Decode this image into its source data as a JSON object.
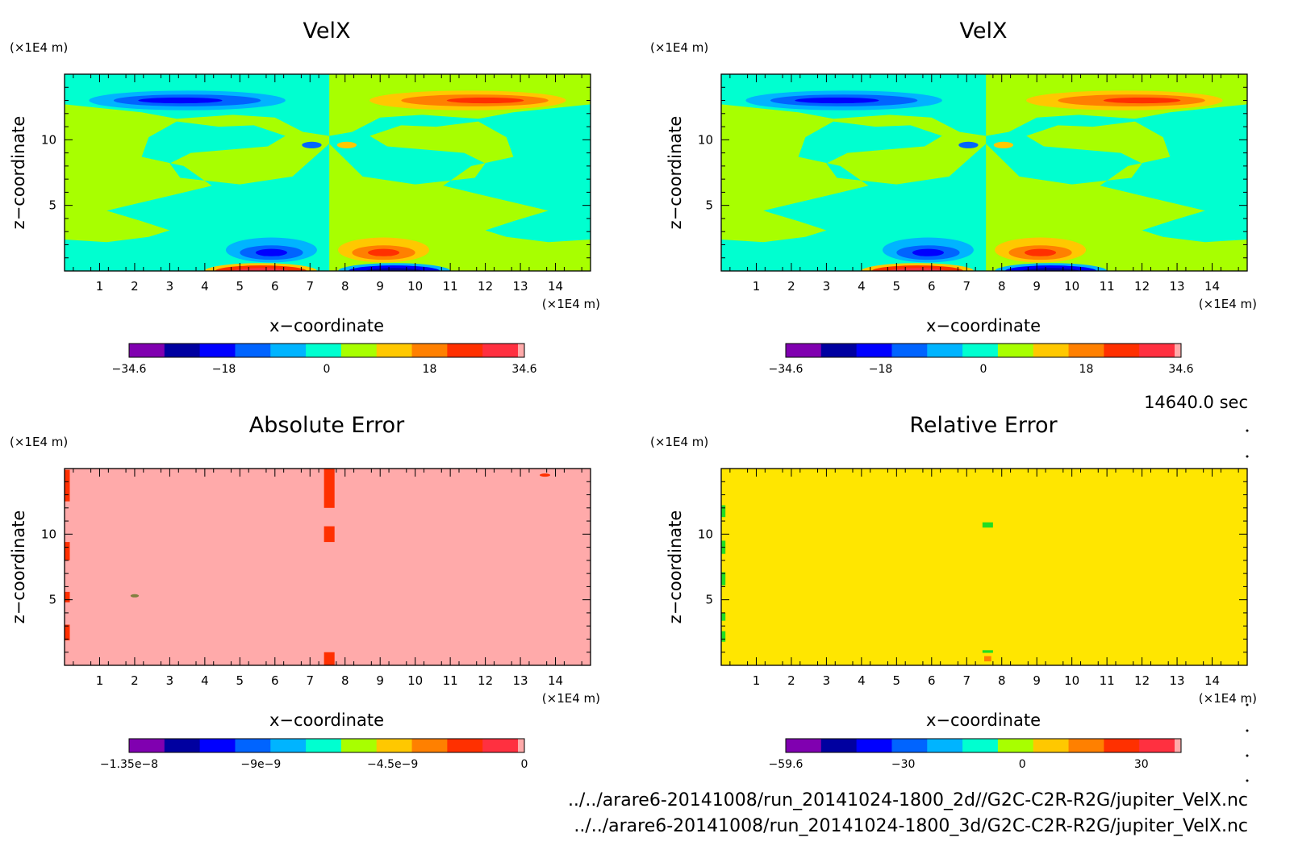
{
  "time_label": "14640.0 sec",
  "footer": {
    "line1": "../../arare6-20141008/run_20141024-1800_2d//G2C-C2R-R2G/jupiter_VelX.nc",
    "line2": "../../arare6-20141008/run_20141024-1800_3d/G2C-C2R-R2G/jupiter_VelX.nc"
  },
  "palette_colors": [
    "#8000b0",
    "#0000a0",
    "#0000ff",
    "#0064ff",
    "#00b4ff",
    "#00ffd0",
    "#a8ff00",
    "#ffc800",
    "#ff8000",
    "#ff3000",
    "#ff3040",
    "#ffaaaa"
  ],
  "chart_data": [
    {
      "type": "heatmap",
      "title": "VelX",
      "xlabel": "x−coordinate",
      "ylabel": "z−coordinate",
      "x_unit": "(×1E4 m)",
      "y_unit": "(×1E4 m)",
      "xlim": [
        0,
        15
      ],
      "ylim": [
        0,
        15
      ],
      "x_ticks": [
        "1",
        "2",
        "3",
        "4",
        "5",
        "6",
        "7",
        "8",
        "9",
        "10",
        "11",
        "12",
        "13",
        "14"
      ],
      "y_ticks": [
        "5",
        "10"
      ],
      "colorbar": {
        "min": -34.6,
        "max": 34.6,
        "tick_labels": [
          "−34.6",
          "−18",
          "0",
          "18",
          "34.6"
        ],
        "tick_values": [
          -34.6,
          -18,
          0,
          18,
          34.6
        ]
      },
      "field": "velx"
    },
    {
      "type": "heatmap",
      "title": "VelX",
      "xlabel": "x−coordinate",
      "ylabel": "z−coordinate",
      "x_unit": "(×1E4 m)",
      "y_unit": "(×1E4 m)",
      "xlim": [
        0,
        15
      ],
      "ylim": [
        0,
        15
      ],
      "x_ticks": [
        "1",
        "2",
        "3",
        "4",
        "5",
        "6",
        "7",
        "8",
        "9",
        "10",
        "11",
        "12",
        "13",
        "14"
      ],
      "y_ticks": [
        "5",
        "10"
      ],
      "colorbar": {
        "min": -34.6,
        "max": 34.6,
        "tick_labels": [
          "−34.6",
          "−18",
          "0",
          "18",
          "34.6"
        ],
        "tick_values": [
          -34.6,
          -18,
          0,
          18,
          34.6
        ]
      },
      "field": "velx"
    },
    {
      "type": "heatmap",
      "title": "Absolute Error",
      "xlabel": "x−coordinate",
      "ylabel": "z−coordinate",
      "x_unit": "(×1E4 m)",
      "y_unit": "(×1E4 m)",
      "xlim": [
        0,
        15
      ],
      "ylim": [
        0,
        15
      ],
      "x_ticks": [
        "1",
        "2",
        "3",
        "4",
        "5",
        "6",
        "7",
        "8",
        "9",
        "10",
        "11",
        "12",
        "13",
        "14"
      ],
      "y_ticks": [
        "5",
        "10"
      ],
      "colorbar": {
        "min": -1.35e-08,
        "max": 0,
        "tick_labels": [
          "−1.35e−8",
          "−9e−9",
          "−4.5e−9",
          "0"
        ],
        "tick_values": [
          -1.35e-08,
          -9e-09,
          -4.5e-09,
          0
        ]
      },
      "field": "abs_error",
      "background_value": 0
    },
    {
      "type": "heatmap",
      "title": "Relative Error",
      "xlabel": "x−coordinate",
      "ylabel": "z−coordinate",
      "x_unit": "(×1E4 m)",
      "y_unit": "(×1E4 m)",
      "xlim": [
        0,
        15
      ],
      "ylim": [
        0,
        15
      ],
      "x_ticks": [
        "1",
        "2",
        "3",
        "4",
        "5",
        "6",
        "7",
        "8",
        "9",
        "10",
        "11",
        "12",
        "13",
        "14"
      ],
      "y_ticks": [
        "5",
        "10"
      ],
      "colorbar": {
        "min": -59.6,
        "max": 40,
        "tick_labels": [
          "−59.6",
          "−30",
          "0",
          "30"
        ],
        "tick_values": [
          -59.6,
          -30,
          0,
          30
        ]
      },
      "field": "rel_error",
      "background_value": 0
    }
  ]
}
